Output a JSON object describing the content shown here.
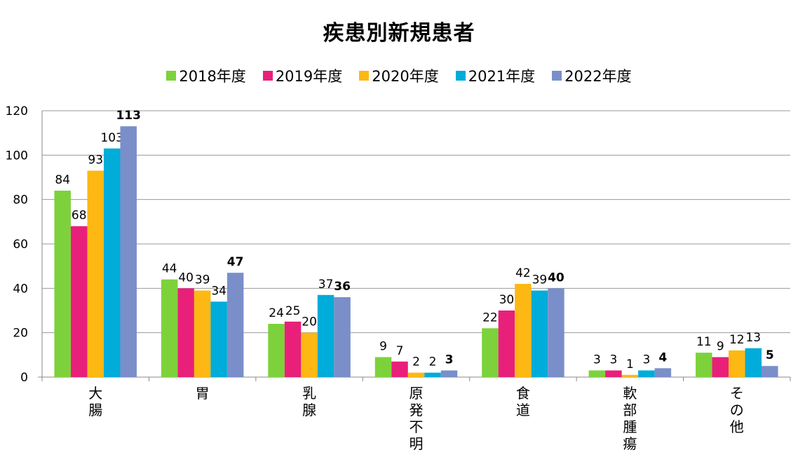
{
  "chart_data": {
    "type": "bar",
    "title": "疾患別新規患者",
    "categories": [
      "大腸",
      "胃",
      "乳腺",
      "原発不明",
      "食道",
      "軟部腫瘍",
      "その他"
    ],
    "series": [
      {
        "name": "2018年度",
        "color": "#7dd23b",
        "values": [
          84,
          44,
          24,
          9,
          22,
          3,
          11
        ]
      },
      {
        "name": "2019年度",
        "color": "#e8207a",
        "values": [
          68,
          40,
          25,
          7,
          30,
          3,
          9
        ]
      },
      {
        "name": "2020年度",
        "color": "#fdb813",
        "values": [
          93,
          39,
          20,
          2,
          42,
          1,
          12
        ]
      },
      {
        "name": "2021年度",
        "color": "#00acd9",
        "values": [
          103,
          34,
          37,
          2,
          39,
          3,
          13
        ]
      },
      {
        "name": "2022年度",
        "color": "#7a8fc9",
        "values": [
          113,
          47,
          36,
          3,
          40,
          4,
          5
        ]
      }
    ],
    "bold_series": "2022年度",
    "ylim": [
      0,
      120
    ],
    "yticks": [
      0,
      20,
      40,
      60,
      80,
      100,
      120
    ],
    "grid": true,
    "legend": "top"
  }
}
